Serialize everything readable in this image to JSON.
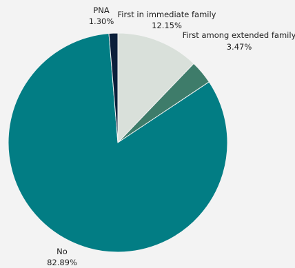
{
  "chart_data": {
    "type": "pie",
    "slices": [
      {
        "label": "First in immediate family",
        "value": 12.15,
        "display": "12.15%",
        "color": "#d9e0da"
      },
      {
        "label": "First among extended family",
        "value": 3.47,
        "display": "3.47%",
        "color": "#3e7c6a"
      },
      {
        "label": "No",
        "value": 82.89,
        "display": "82.89%",
        "color": "#027d84"
      },
      {
        "label": "PNA",
        "value": 1.3,
        "display": "1.30%",
        "color": "#0b1f3a"
      }
    ]
  }
}
